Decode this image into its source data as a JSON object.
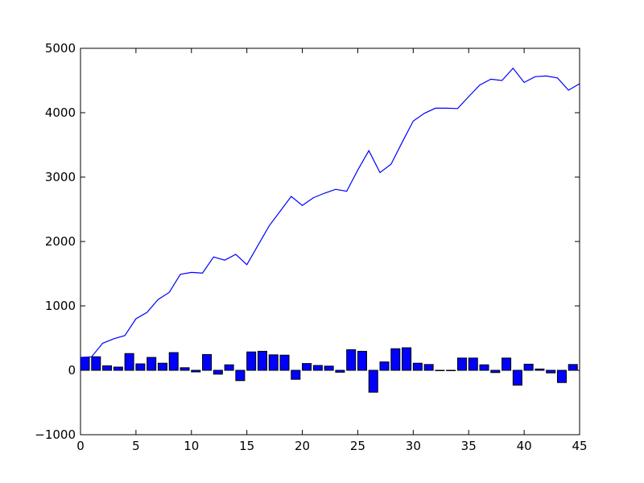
{
  "chart_data": {
    "type": "bar+line",
    "xlim": [
      0,
      45
    ],
    "ylim": [
      -1000,
      5000
    ],
    "x_ticks": [
      0,
      5,
      10,
      15,
      20,
      25,
      30,
      35,
      40,
      45
    ],
    "x_tick_labels": [
      "0",
      "5",
      "10",
      "15",
      "20",
      "25",
      "30",
      "35",
      "40",
      "45"
    ],
    "y_ticks": [
      -1000,
      0,
      1000,
      2000,
      3000,
      4000,
      5000
    ],
    "y_tick_labels": [
      "−1000",
      "0",
      "1000",
      "2000",
      "3000",
      "4000",
      "5000"
    ],
    "grid": false,
    "bar_color": "#0000ff",
    "line_color": "#0000ff",
    "bar_width": 0.8,
    "series": [
      {
        "type": "bar",
        "x": [
          0,
          1,
          2,
          3,
          4,
          5,
          6,
          7,
          8,
          9,
          10,
          11,
          12,
          13,
          14,
          15,
          16,
          17,
          18,
          19,
          20,
          21,
          22,
          23,
          24,
          25,
          26,
          27,
          28,
          29,
          30,
          31,
          32,
          33,
          34,
          35,
          36,
          37,
          38,
          39,
          40,
          41,
          42,
          43,
          44
        ],
        "values": [
          200,
          210,
          70,
          50,
          260,
          100,
          200,
          110,
          275,
          40,
          -25,
          245,
          -60,
          85,
          -160,
          285,
          295,
          240,
          235,
          -140,
          105,
          75,
          65,
          -30,
          320,
          295,
          -340,
          130,
          335,
          350,
          110,
          90,
          0,
          0,
          190,
          190,
          85,
          -35,
          190,
          -230,
          95,
          20,
          -40,
          -190,
          90
        ]
      },
      {
        "type": "line",
        "x": [
          0,
          1,
          2,
          3,
          4,
          5,
          6,
          7,
          8,
          9,
          10,
          11,
          12,
          13,
          14,
          15,
          16,
          17,
          18,
          19,
          20,
          21,
          22,
          23,
          24,
          25,
          26,
          27,
          28,
          29,
          30,
          31,
          32,
          33,
          34,
          35,
          36,
          37,
          38,
          39,
          40,
          41,
          42,
          43,
          44,
          45
        ],
        "values": [
          200,
          210,
          420,
          490,
          540,
          800,
          900,
          1100,
          1210,
          1490,
          1520,
          1510,
          1760,
          1710,
          1800,
          1640,
          1940,
          2240,
          2470,
          2700,
          2560,
          2680,
          2750,
          2810,
          2780,
          3110,
          3410,
          3070,
          3200,
          3540,
          3870,
          3990,
          4070,
          4070,
          4065,
          4250,
          4430,
          4520,
          4500,
          4690,
          4470,
          4560,
          4570,
          4540,
          4350,
          4450
        ]
      }
    ]
  }
}
